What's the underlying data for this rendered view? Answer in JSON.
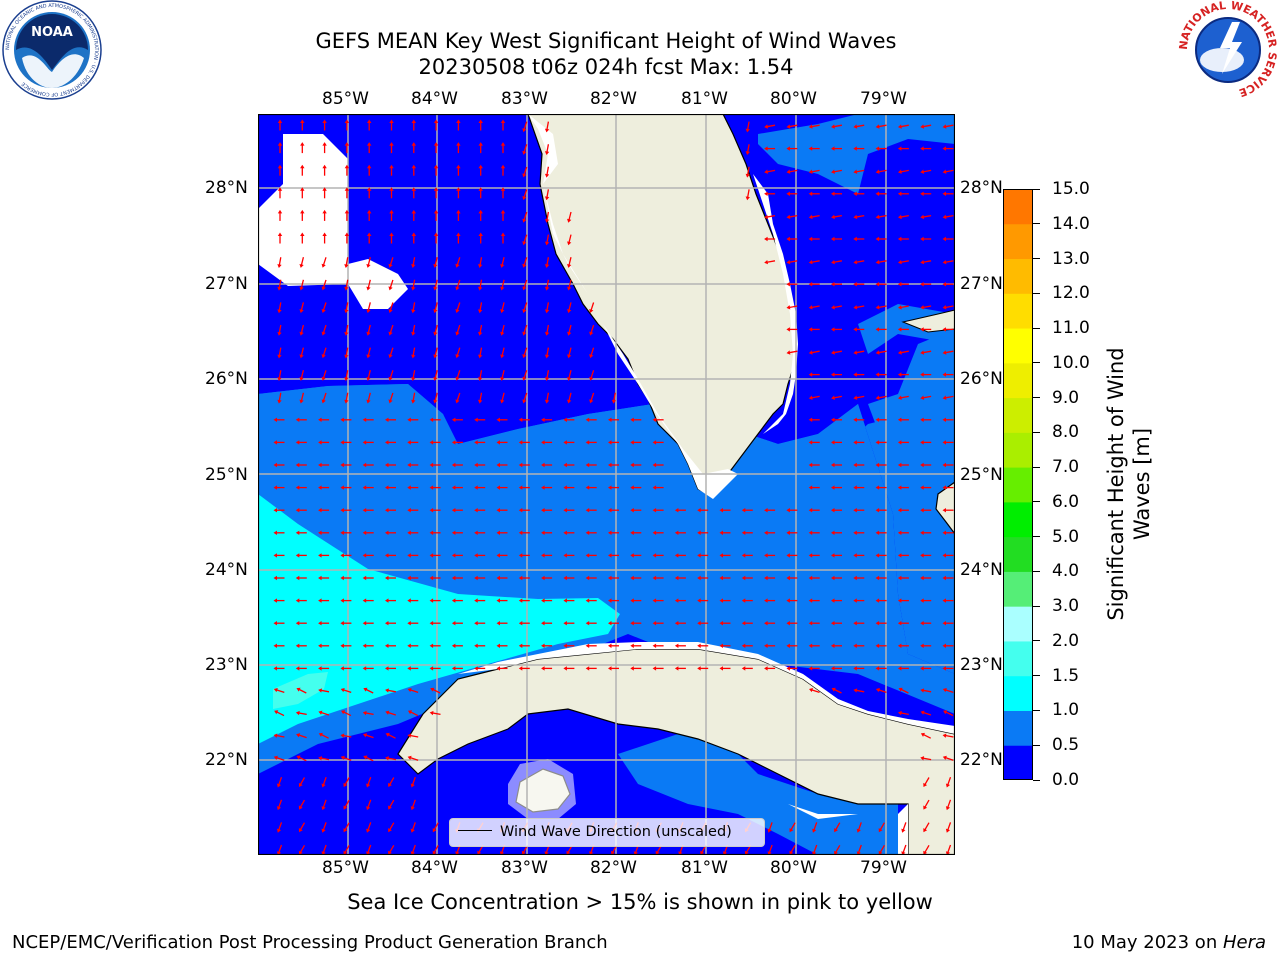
{
  "title": {
    "line1": "GEFS MEAN Key West Significant Height of Wind Waves",
    "line2": "20230508 t06z 024h fcst   Max: 1.54"
  },
  "map": {
    "lon_ticks_top": [
      "85°W",
      "84°W",
      "83°W",
      "82°W",
      "81°W",
      "80°W",
      "79°W"
    ],
    "lon_ticks_bottom": [
      "85°W",
      "84°W",
      "83°W",
      "82°W",
      "81°W",
      "80°W",
      "79°W"
    ],
    "lat_ticks_left": [
      "28°N",
      "27°N",
      "26°N",
      "25°N",
      "24°N",
      "23°N",
      "22°N"
    ],
    "lat_ticks_right": [
      "28°N",
      "27°N",
      "26°N",
      "25°N",
      "24°N",
      "23°N",
      "22°N"
    ],
    "legend_label": "Wind Wave Direction (unscaled)",
    "colors": {
      "land": "#eeeedd",
      "band_0_0_5": "#0000ff",
      "band_0_5_1_0": "#0a7af5",
      "band_1_0_1_5": "#00ffff",
      "band_1_5_2_0": "#44ffee",
      "arrow": "#ff0000",
      "grid": "#b3b3b3"
    }
  },
  "colorbar": {
    "label": "Significant Height of Wind Waves [m]",
    "ticks": [
      "15.0",
      "14.0",
      "13.0",
      "12.0",
      "11.0",
      "10.0",
      "9.0",
      "8.0",
      "7.0",
      "6.0",
      "5.0",
      "4.0",
      "3.0",
      "2.0",
      "1.5",
      "1.0",
      "0.5",
      "0.0"
    ],
    "colors": [
      "#0000ff",
      "#0a7af5",
      "#00ffff",
      "#44ffee",
      "#aaffff",
      "#55ee77",
      "#22dd22",
      "#00ee00",
      "#66ee00",
      "#aaee00",
      "#ccee00",
      "#eeee00",
      "#ffff00",
      "#ffdd00",
      "#ffbb00",
      "#ff9900",
      "#ff7700",
      "#ff5500",
      "#ff2200",
      "#ff0000"
    ]
  },
  "caption": "Sea Ice Concentration > 15% is shown in pink to yellow",
  "footer": {
    "left": "NCEP/EMC/Verification Post Processing Product Generation Branch",
    "right_prefix": "10 May 2023 on ",
    "right_host": "Hera"
  },
  "logos": {
    "noaa_text": "NOAA",
    "noaa_ring": "NATIONAL OCEANIC AND ATMOSPHERIC ADMINISTRATION · U.S. DEPARTMENT OF COMMERCE",
    "nws_ring": "NATIONAL WEATHER SERVICE"
  }
}
